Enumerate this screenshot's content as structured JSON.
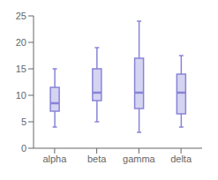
{
  "chart_data": {
    "type": "box",
    "categories": [
      "alpha",
      "beta",
      "gamma",
      "delta"
    ],
    "boxes": [
      {
        "min": 4.0,
        "q1": 7.0,
        "median": 8.5,
        "q3": 11.5,
        "max": 15.0
      },
      {
        "min": 5.0,
        "q1": 9.0,
        "median": 10.5,
        "q3": 15.0,
        "max": 19.0
      },
      {
        "min": 3.0,
        "q1": 7.5,
        "median": 10.5,
        "q3": 17.0,
        "max": 24.0
      },
      {
        "min": 4.0,
        "q1": 6.5,
        "median": 10.5,
        "q3": 14.0,
        "max": 17.5
      }
    ],
    "ylim": [
      0,
      25
    ],
    "yticks": [
      0,
      5,
      10,
      15,
      20,
      25
    ],
    "grid": false,
    "color": "#8884d8"
  }
}
